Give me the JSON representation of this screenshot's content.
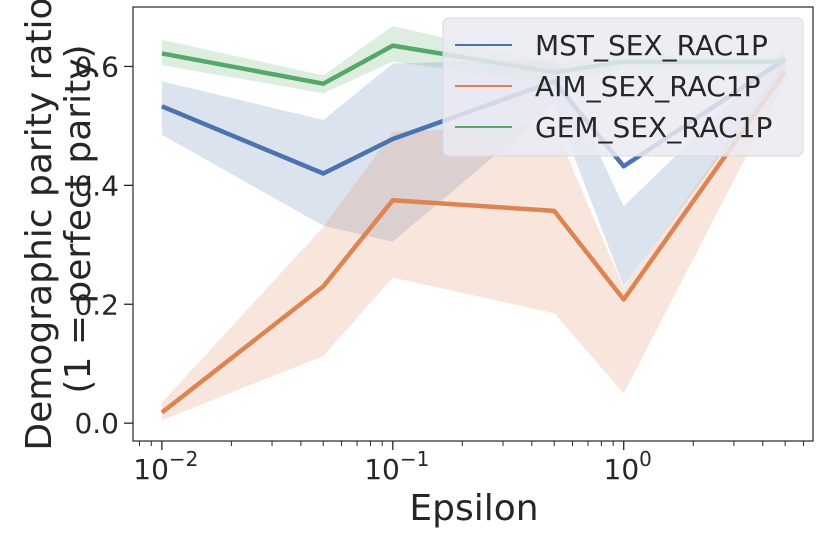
{
  "chart_data": {
    "type": "line",
    "x_scale": "log",
    "x": [
      0.01,
      0.05,
      0.1,
      0.5,
      1,
      5
    ],
    "xlim": [
      0.0075,
      6.6
    ],
    "ylim": [
      -0.03,
      0.7
    ],
    "xlabel": "Epsilon",
    "ylabel_line1": "Demographic parity ratio",
    "ylabel_line2": "(1 = perfect parity)",
    "grid": false,
    "legend_position": "top-right",
    "x_ticks": [
      {
        "value": 0.01,
        "base": "10",
        "exp": "−2"
      },
      {
        "value": 0.1,
        "base": "10",
        "exp": "−1"
      },
      {
        "value": 1,
        "base": "10",
        "exp": "0"
      }
    ],
    "y_ticks": [
      {
        "value": 0.0,
        "label": "0.0"
      },
      {
        "value": 0.2,
        "label": "0.2"
      },
      {
        "value": 0.4,
        "label": "0.4"
      },
      {
        "value": 0.6,
        "label": "0.6"
      }
    ],
    "series": [
      {
        "name": "MST_SEX_RAC1P",
        "color": "#4c72b0",
        "values": [
          0.533,
          0.42,
          0.478,
          0.575,
          0.432,
          0.612
        ],
        "lower": [
          0.485,
          0.332,
          0.305,
          0.535,
          0.23,
          0.598
        ],
        "upper": [
          0.575,
          0.51,
          0.605,
          0.612,
          0.365,
          0.628
        ]
      },
      {
        "name": "AIM_SEX_RAC1P",
        "color": "#dd8452",
        "values": [
          0.018,
          0.23,
          0.375,
          0.357,
          0.208,
          0.592
        ],
        "lower": [
          0.005,
          0.113,
          0.245,
          0.185,
          0.05,
          0.575
        ],
        "upper": [
          0.035,
          0.33,
          0.49,
          0.5,
          0.228,
          0.61
        ]
      },
      {
        "name": "GEM_SEX_RAC1P",
        "color": "#55a868",
        "values": [
          0.622,
          0.571,
          0.635,
          0.59,
          0.608,
          0.608
        ],
        "lower": [
          0.602,
          0.555,
          0.608,
          0.572,
          0.596,
          0.598
        ],
        "upper": [
          0.645,
          0.585,
          0.668,
          0.605,
          0.62,
          0.618
        ]
      }
    ]
  }
}
